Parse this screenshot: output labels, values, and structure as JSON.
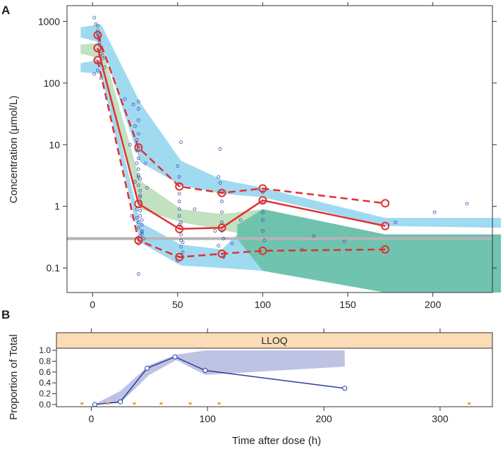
{
  "chart_data": [
    {
      "panel_label": "A",
      "type": "scatter",
      "subtype": "visual-predictive-check",
      "xlabel": "",
      "ylabel": "Concentration (μmol/L)",
      "y_scale": "log10",
      "xlim": [
        -15,
        235
      ],
      "ylim": [
        0.04,
        1800
      ],
      "x_ticks": [
        0,
        50,
        100,
        150,
        200
      ],
      "x_tick_labels": [
        "0",
        "50",
        "100",
        "150",
        "200"
      ],
      "y_ticks": [
        0.1,
        1,
        10,
        100,
        1000
      ],
      "y_tick_labels": [
        "0.1",
        "1",
        "10",
        "100",
        "1000"
      ],
      "lloq_line": {
        "y": 0.3,
        "color": "#b5b5b5"
      },
      "bands": [
        {
          "name": "95% CI of simulated 95th percentile",
          "color": "#8fd3ef",
          "x": [
            -7,
            5,
            28,
            52,
            76,
            100,
            172,
            240
          ],
          "lower": [
            550,
            450,
            5.2,
            2.2,
            1.6,
            1.4,
            0.48,
            0.45
          ],
          "upper": [
            800,
            900,
            48,
            5.5,
            2.7,
            2.0,
            0.65,
            0.65
          ]
        },
        {
          "name": "95% CI of simulated median",
          "color": "#b6dcb6",
          "x": [
            -7,
            5,
            28,
            52,
            76,
            100,
            172,
            240
          ],
          "lower": [
            300,
            250,
            0.9,
            0.55,
            0.42,
            0.3,
            0.28,
            0.28
          ],
          "upper": [
            420,
            450,
            2.6,
            0.9,
            0.75,
            0.9,
            0.35,
            0.35
          ]
        },
        {
          "name": "95% CI of simulated 5th percentile",
          "color": "#8fd3ef",
          "x": [
            -7,
            5,
            28,
            52,
            76,
            100,
            172,
            240
          ],
          "lower": [
            150,
            140,
            0.26,
            0.11,
            0.1,
            0.09,
            0.04,
            0.04
          ],
          "upper": [
            210,
            240,
            0.55,
            0.24,
            0.2,
            0.9,
            0.35,
            0.35
          ]
        }
      ],
      "overlap_band": {
        "name": "overlap",
        "color": "#6ac0a6",
        "x": [
          85,
          100,
          172,
          240
        ],
        "lower": [
          0.3,
          0.09,
          0.04,
          0.04
        ],
        "upper": [
          0.5,
          0.9,
          0.35,
          0.35
        ]
      },
      "series": [
        {
          "name": "Observed 95th percentile",
          "style": "dashed",
          "color": "#e03030",
          "x": [
            3,
            27,
            51,
            76,
            100,
            172
          ],
          "y": [
            600,
            9,
            2.1,
            1.65,
            1.95,
            1.12
          ]
        },
        {
          "name": "Observed median",
          "style": "solid",
          "color": "#e03030",
          "x": [
            3,
            27,
            51,
            76,
            100,
            172
          ],
          "y": [
            370,
            1.1,
            0.43,
            0.45,
            1.25,
            0.48
          ]
        },
        {
          "name": "Observed 5th percentile",
          "style": "dashed",
          "color": "#e03030",
          "x": [
            3,
            27,
            51,
            76,
            100,
            172
          ],
          "y": [
            235,
            0.28,
            0.15,
            0.17,
            0.19,
            0.2
          ]
        }
      ],
      "observations": {
        "color": "#3c4fb0",
        "x": [
          1,
          2,
          3,
          3,
          3,
          3,
          4,
          4,
          4,
          4,
          5,
          5,
          5,
          6,
          6,
          2,
          4,
          7,
          1,
          5,
          3,
          24,
          25,
          26,
          26,
          26,
          27,
          27,
          27,
          27,
          27,
          27,
          27,
          27,
          27,
          28,
          28,
          28,
          28,
          28,
          28,
          29,
          29,
          29,
          29,
          30,
          25,
          27,
          26,
          28,
          27,
          28,
          27,
          27,
          29,
          26,
          27,
          28,
          50,
          51,
          51,
          51,
          51,
          51,
          51,
          52,
          52,
          52,
          52,
          52,
          53,
          53,
          50,
          52,
          51,
          53,
          75,
          75,
          76,
          76,
          76,
          76,
          76,
          77,
          74,
          77,
          100,
          100,
          100,
          100,
          100,
          101,
          19,
          22,
          23,
          31,
          32,
          60,
          72,
          74,
          82,
          87,
          123,
          130,
          148,
          178,
          201,
          220
        ],
        "y": [
          1150,
          900,
          850,
          700,
          650,
          600,
          550,
          500,
          450,
          420,
          380,
          330,
          300,
          280,
          250,
          230,
          200,
          180,
          140,
          120,
          160,
          45,
          20,
          12,
          8,
          5,
          50,
          38,
          25,
          15,
          9,
          6,
          4,
          3,
          2.2,
          1.8,
          1.5,
          1.2,
          1,
          0.85,
          0.7,
          0.6,
          0.5,
          0.4,
          0.35,
          0.3,
          2.5,
          0.45,
          0.9,
          1.4,
          0.25,
          0.33,
          3.2,
          0.55,
          0.38,
          0.65,
          0.08,
          2.8,
          4.5,
          3,
          2.2,
          1.6,
          1.2,
          0.9,
          0.7,
          0.55,
          0.45,
          0.35,
          0.28,
          0.22,
          0.18,
          0.15,
          0.13,
          11,
          0.5,
          0.26,
          8.5,
          2.4,
          1.8,
          1.2,
          0.8,
          0.55,
          0.4,
          0.3,
          0.23,
          0.15,
          1.7,
          1.2,
          0.8,
          0.6,
          0.4,
          0.28,
          55,
          10,
          0.7,
          5,
          2,
          0.9,
          0.4,
          3,
          0.25,
          0.6,
          0.2,
          0.33,
          0.27,
          0.55,
          0.8,
          1.1
        ]
      }
    },
    {
      "panel_label": "B",
      "type": "line",
      "strip_label": "LLOQ",
      "xlabel": "Time after dose (h)",
      "ylabel": "Proportion of Total",
      "xlim": [
        -30,
        345
      ],
      "ylim": [
        -0.04,
        1.04
      ],
      "x_ticks": [
        0,
        100,
        200,
        300
      ],
      "x_tick_labels": [
        "0",
        "100",
        "200",
        "300"
      ],
      "y_ticks": [
        0.0,
        0.2,
        0.4,
        0.6,
        0.8,
        1.0
      ],
      "y_tick_labels": [
        "0.0",
        "0.2",
        "0.4",
        "0.6",
        "0.8",
        "1.0"
      ],
      "band": {
        "name": "95% CI of simulated proportion below LLOQ",
        "color": "#b7bde0",
        "x": [
          3,
          25,
          50,
          73,
          98,
          218
        ],
        "lower": [
          0.0,
          0.03,
          0.55,
          0.82,
          0.55,
          0.7
        ],
        "upper": [
          0.01,
          0.25,
          0.73,
          0.92,
          1.0,
          1.0
        ]
      },
      "series": [
        {
          "name": "Observed proportion below LLOQ",
          "color": "#2d3ca0",
          "x": [
            3,
            25,
            48,
            72,
            98,
            218
          ],
          "y": [
            0.0,
            0.05,
            0.67,
            0.88,
            0.63,
            0.3
          ]
        }
      ],
      "rug": {
        "color": "#f0a030",
        "x": [
          -8,
          14,
          37,
          60,
          85,
          110,
          325
        ]
      }
    }
  ]
}
